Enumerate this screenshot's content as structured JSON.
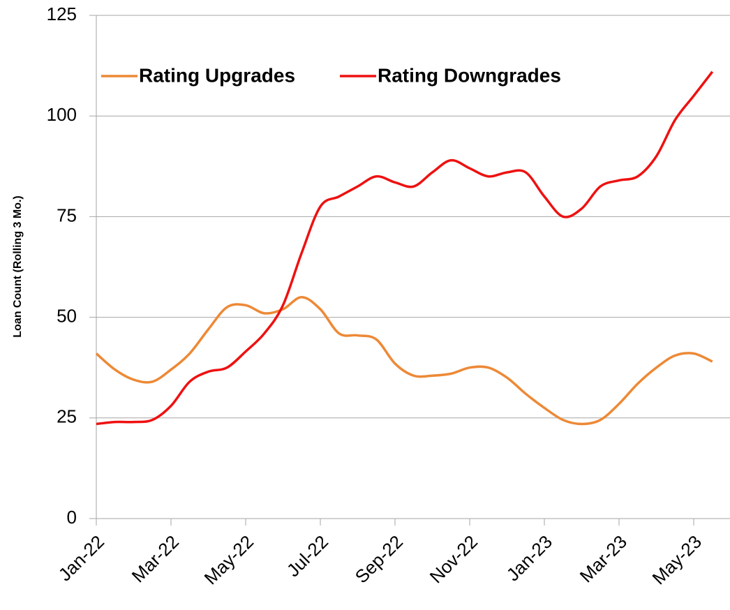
{
  "chart_data": {
    "type": "line",
    "y_label": "Loan Count (Rolling 3 Mo.)",
    "categories": [
      "Jan-22",
      null,
      null,
      null,
      "Mar-22",
      null,
      null,
      null,
      "May-22",
      null,
      null,
      null,
      "Jul-22",
      null,
      null,
      null,
      "Sep-22",
      null,
      null,
      null,
      "Nov-22",
      null,
      null,
      null,
      "Jan-23",
      null,
      null,
      null,
      "Mar-23",
      null,
      null,
      null,
      "May-23",
      null
    ],
    "series": [
      {
        "name": "Rating Upgrades",
        "color": "#ed8936",
        "values": [
          41,
          37,
          34.5,
          34,
          37,
          41,
          47,
          52.5,
          53,
          51,
          52,
          55,
          52,
          46,
          45.5,
          44.5,
          38.5,
          35.5,
          35.5,
          36,
          37.5,
          37.5,
          35,
          31,
          27.5,
          24.5,
          23.5,
          24.5,
          28.5,
          33.5,
          37.5,
          40.5,
          41,
          39
        ]
      },
      {
        "name": "Rating Downgrades",
        "color": "#ee1111",
        "values": [
          23.5,
          24,
          24,
          24.5,
          28,
          34,
          36.5,
          37.5,
          41.5,
          46,
          53,
          66,
          77.5,
          80,
          82.5,
          85,
          83.5,
          82.5,
          86,
          89,
          87,
          85,
          86,
          86,
          80,
          75,
          77,
          82.5,
          84,
          85,
          90,
          99,
          105,
          111
        ]
      }
    ],
    "ylim": [
      0,
      125
    ],
    "yticks": [
      0,
      25,
      50,
      75,
      100,
      125
    ],
    "grid": true
  }
}
